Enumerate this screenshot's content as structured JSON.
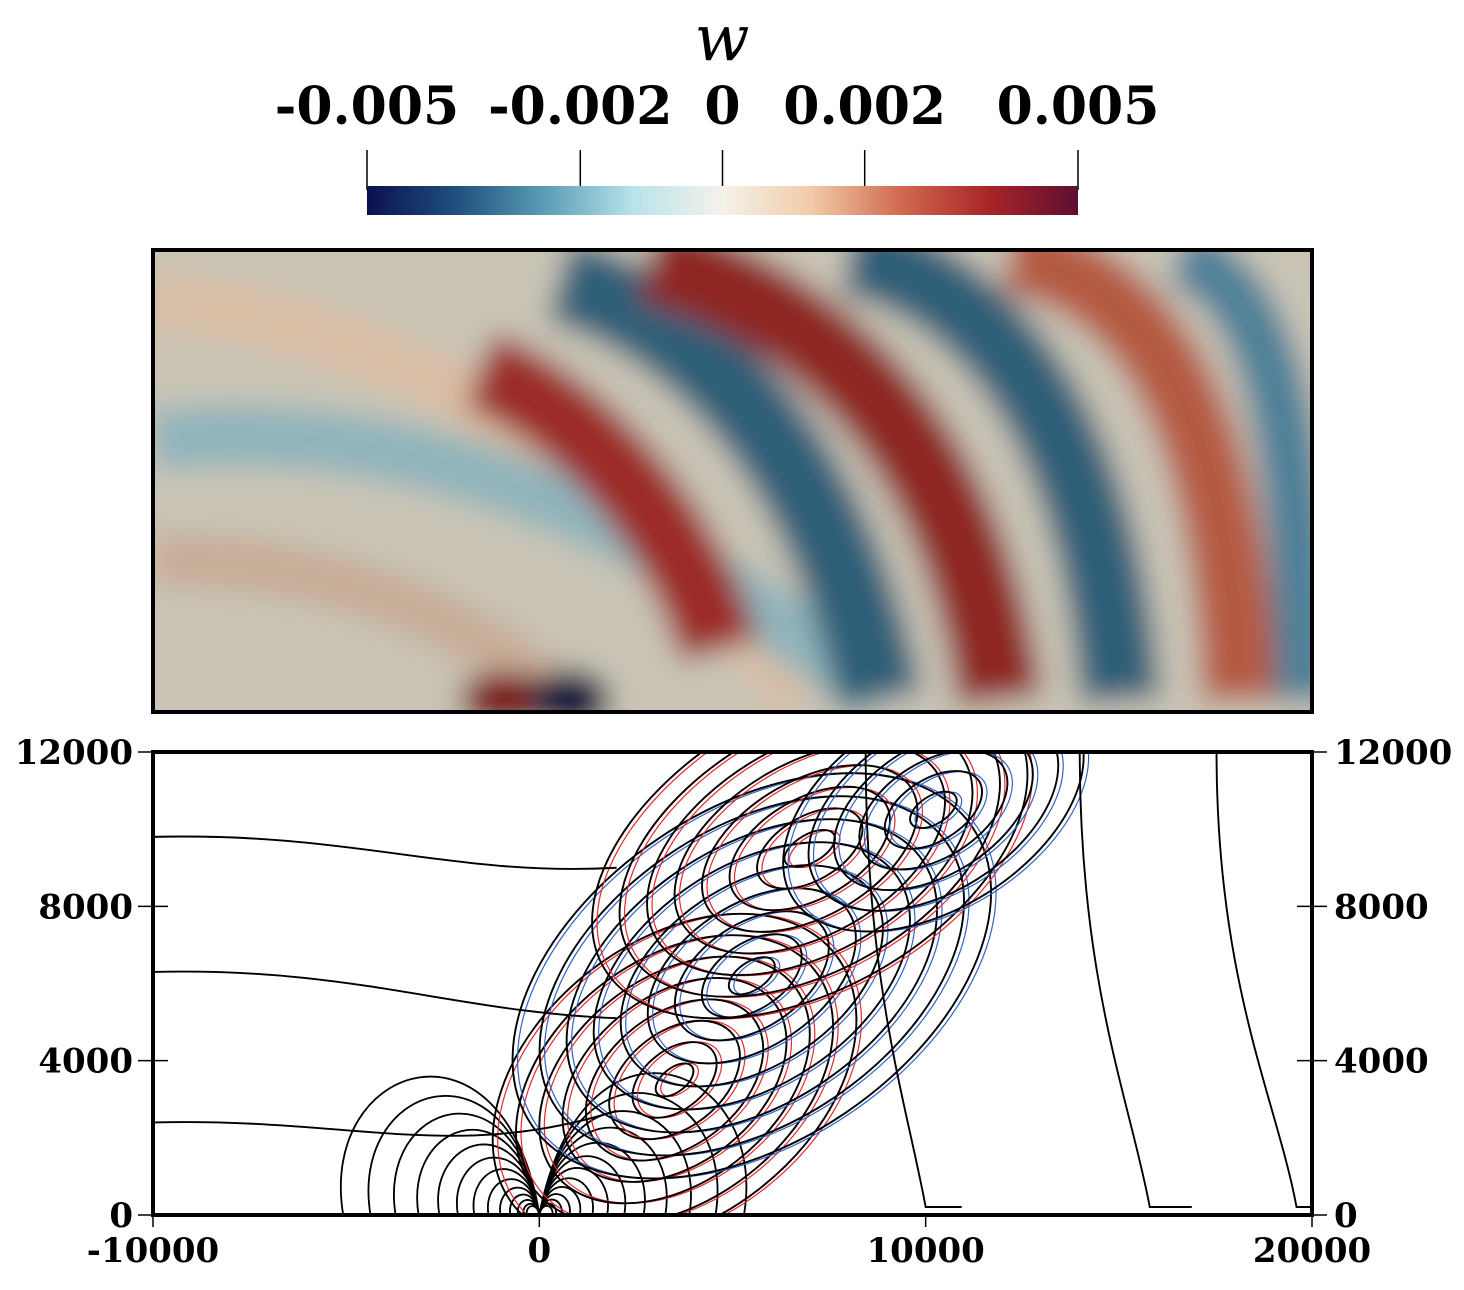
{
  "chart_data": [
    {
      "type": "heatmap",
      "variable": "w",
      "colorbar": {
        "title": "w",
        "range": [
          -0.005,
          0.005
        ],
        "ticks": [
          -0.005,
          -0.002,
          0,
          0.002,
          0.005
        ],
        "tick_labels": [
          "-0.005",
          "-0.002",
          "0",
          "0.002",
          "0.005"
        ],
        "colormap": [
          "#0b1150",
          "#1f4f7d",
          "#5a9db6",
          "#b9e3ea",
          "#f4f2ea",
          "#f2cba8",
          "#d06a50",
          "#a82527",
          "#5e0e33"
        ]
      },
      "domain": {
        "x": [
          -10000,
          20000
        ],
        "y": [
          0,
          12000
        ]
      },
      "features": [
        {
          "label": "positive lobe near origin",
          "x": -1000,
          "y": 500,
          "w": 0.0045
        },
        {
          "label": "negative lobe near origin",
          "x": 800,
          "y": 500,
          "w": -0.0052
        },
        {
          "label": "positive band",
          "x": 3500,
          "y": 3500,
          "w": 0.004
        },
        {
          "label": "negative band",
          "x": 5500,
          "y": 6200,
          "w": -0.0038
        },
        {
          "label": "positive band",
          "x": 8000,
          "y": 9500,
          "w": 0.0038
        },
        {
          "label": "negative band",
          "x": 11000,
          "y": 10500,
          "w": -0.0033
        },
        {
          "label": "positive band",
          "x": 13500,
          "y": 11500,
          "w": 0.003
        }
      ]
    },
    {
      "type": "line",
      "xlim": [
        -10000,
        20000
      ],
      "ylim": [
        0,
        12000
      ],
      "xticks": [
        -10000,
        0,
        10000,
        20000
      ],
      "xtick_labels": [
        "-10000",
        "0",
        "10000",
        "20000"
      ],
      "yticks": [
        0,
        4000,
        8000,
        12000
      ],
      "ytick_labels": [
        "0",
        "4000",
        "8000",
        "12000"
      ],
      "series": [
        {
          "color": "#000000",
          "role": "contours"
        },
        {
          "color": "#e8282b",
          "role": "contours, positive"
        },
        {
          "color": "#2e64c8",
          "role": "contours, negative"
        }
      ],
      "contour_centers": [
        {
          "x": 3500,
          "y": 3500
        },
        {
          "x": 5500,
          "y": 6200
        },
        {
          "x": 7000,
          "y": 9500
        },
        {
          "x": 10200,
          "y": 10500
        }
      ]
    }
  ]
}
